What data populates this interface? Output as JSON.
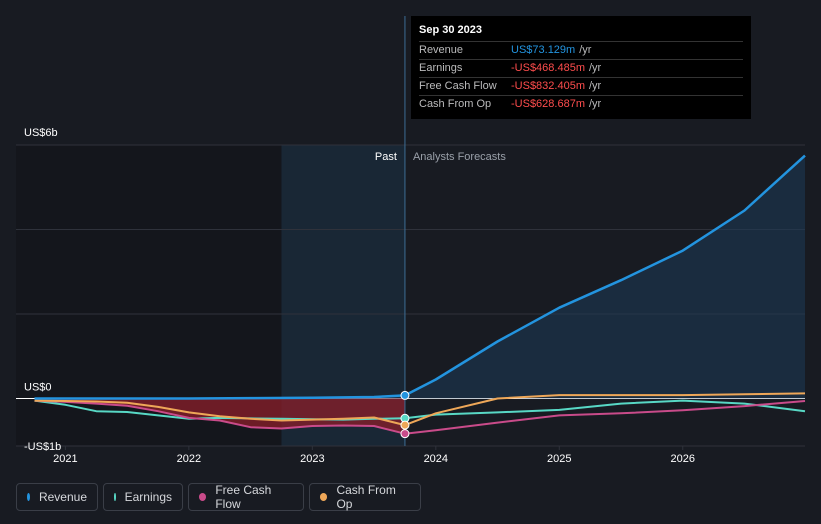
{
  "tooltip": {
    "date": "Sep 30 2023",
    "rows": [
      {
        "label": "Revenue",
        "value": "US$73.129m",
        "unit": "/yr",
        "color": "#2394df"
      },
      {
        "label": "Earnings",
        "value": "-US$468.485m",
        "unit": "/yr",
        "color": "#ff4d4d"
      },
      {
        "label": "Free Cash Flow",
        "value": "-US$832.405m",
        "unit": "/yr",
        "color": "#ff4d4d"
      },
      {
        "label": "Cash From Op",
        "value": "-US$628.687m",
        "unit": "/yr",
        "color": "#ff4d4d"
      }
    ]
  },
  "labels": {
    "past": "Past",
    "forecast": "Analysts Forecasts"
  },
  "legend": [
    {
      "label": "Revenue",
      "color": "#2394df"
    },
    {
      "label": "Earnings",
      "color": "#58d8c5"
    },
    {
      "label": "Free Cash Flow",
      "color": "#c94b8a"
    },
    {
      "label": "Cash From Op",
      "color": "#eea758"
    }
  ],
  "chart_data": {
    "type": "line",
    "y_tick_labels": [
      {
        "value": 6000,
        "label": "US$6b"
      },
      {
        "value": 0,
        "label": "US$0"
      },
      {
        "value": -1000,
        "label": "-US$1b"
      }
    ],
    "x_tick_labels": [
      "2021",
      "2022",
      "2023",
      "2024",
      "2025",
      "2026"
    ],
    "xlim": [
      2020.6,
      2026.99
    ],
    "ylim": [
      -1050,
      6000
    ],
    "past_forecast_split": 2023.75,
    "highlight_from": 2022.75,
    "series": [
      {
        "name": "Revenue",
        "color": "#2394df",
        "x": [
          2020.75,
          2021.0,
          2021.5,
          2022.0,
          2022.5,
          2023.0,
          2023.5,
          2023.75,
          2024.0,
          2024.5,
          2025.0,
          2025.5,
          2026.0,
          2026.5,
          2026.99
        ],
        "y": [
          0,
          0,
          0,
          0,
          10,
          20,
          35,
          73,
          450,
          1350,
          2150,
          2800,
          3500,
          4450,
          5750
        ]
      },
      {
        "name": "Earnings",
        "color": "#58d8c5",
        "x": [
          2020.75,
          2021.0,
          2021.25,
          2021.5,
          2021.75,
          2022.0,
          2022.25,
          2022.5,
          2022.75,
          2023.0,
          2023.25,
          2023.5,
          2023.75,
          2024.0,
          2024.5,
          2025.0,
          2025.5,
          2026.0,
          2026.5,
          2026.99
        ],
        "y": [
          -50,
          -150,
          -300,
          -320,
          -400,
          -480,
          -460,
          -470,
          -480,
          -490,
          -500,
          -480,
          -468,
          -380,
          -330,
          -270,
          -120,
          -50,
          -120,
          -300
        ]
      },
      {
        "name": "Free Cash Flow",
        "color": "#c94b8a",
        "x": [
          2020.75,
          2021.0,
          2021.25,
          2021.5,
          2021.75,
          2022.0,
          2022.25,
          2022.5,
          2022.75,
          2023.0,
          2023.25,
          2023.5,
          2023.75,
          2024.0,
          2024.5,
          2025.0,
          2025.5,
          2026.0,
          2026.5,
          2026.99
        ],
        "y": [
          -50,
          -80,
          -120,
          -170,
          -300,
          -460,
          -520,
          -680,
          -710,
          -650,
          -640,
          -650,
          -832,
          -750,
          -570,
          -400,
          -350,
          -280,
          -180,
          -60
        ]
      },
      {
        "name": "Cash From Op",
        "color": "#eea758",
        "x": [
          2020.75,
          2021.0,
          2021.25,
          2021.5,
          2021.75,
          2022.0,
          2022.25,
          2022.5,
          2022.75,
          2023.0,
          2023.25,
          2023.5,
          2023.75,
          2024.0,
          2024.5,
          2025.0,
          2025.5,
          2026.0,
          2026.5,
          2026.99
        ],
        "y": [
          -50,
          -60,
          -70,
          -100,
          -200,
          -330,
          -420,
          -480,
          -520,
          -500,
          -480,
          -450,
          -629,
          -350,
          0,
          80,
          80,
          80,
          100,
          120
        ]
      }
    ]
  }
}
